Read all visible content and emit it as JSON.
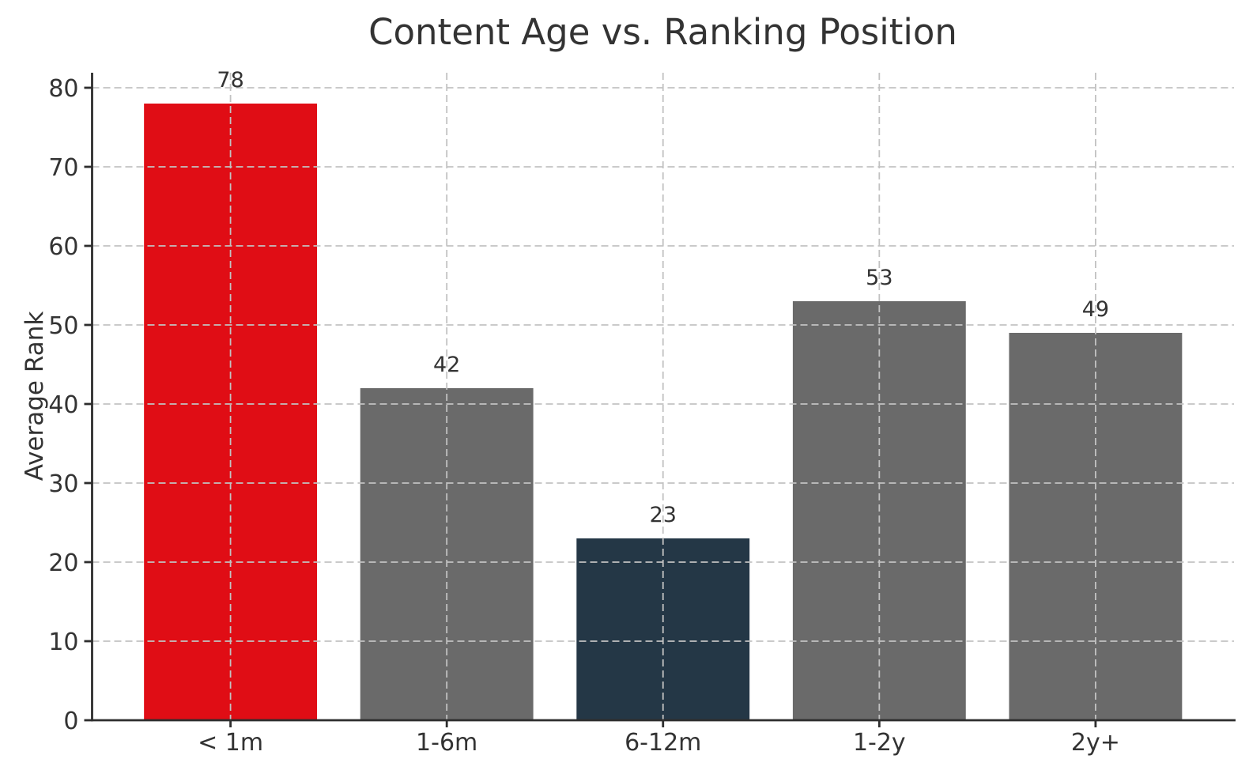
{
  "chart_data": {
    "type": "bar",
    "title": "Content Age vs. Ranking Position",
    "xlabel": "",
    "ylabel": "Average Rank",
    "categories": [
      "< 1m",
      "1-6m",
      "6-12m",
      "1-2y",
      "2y+"
    ],
    "values": [
      78,
      42,
      23,
      53,
      49
    ],
    "value_labels": [
      "78",
      "42",
      "23",
      "53",
      "49"
    ],
    "bar_colors": [
      "#e00d15",
      "#6a6a6a",
      "#243746",
      "#6a6a6a",
      "#6a6a6a"
    ],
    "yticks": [
      0,
      10,
      20,
      30,
      40,
      50,
      60,
      70,
      80
    ],
    "ylim": [
      0,
      82
    ],
    "bar_width_fraction": 0.8,
    "grid": "dashed horizontal and vertical gridlines drawn above bars",
    "legend": "none",
    "colors": {
      "highlight_red": "#e00d15",
      "neutral_gray": "#6a6a6a",
      "dark_navy": "#243746",
      "grid_line": "#c2c2c2",
      "axis_spine": "#2e2e2e",
      "text": "#333333",
      "background": "#ffffff"
    }
  }
}
